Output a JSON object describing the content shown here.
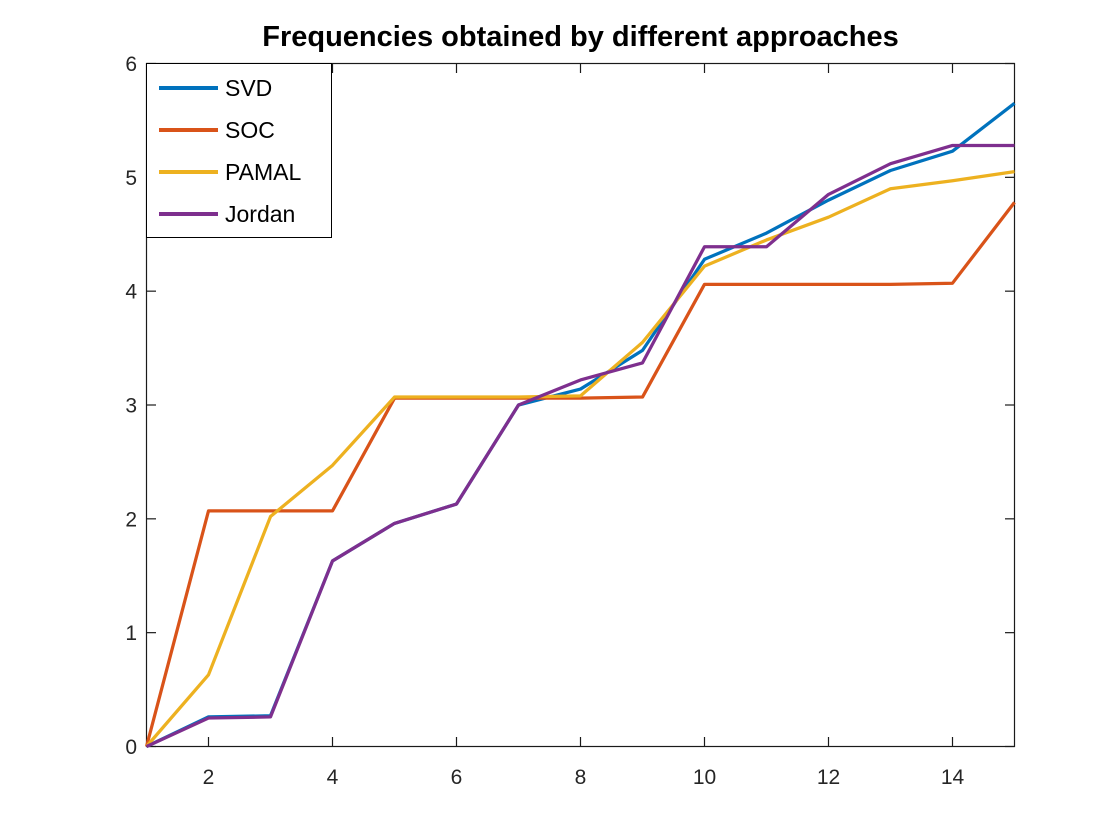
{
  "chart_data": {
    "type": "line",
    "title": "Frequencies obtained by different approaches",
    "xlabel": "",
    "ylabel": "",
    "xlim": [
      1,
      15
    ],
    "ylim": [
      0,
      6
    ],
    "xticks": [
      2,
      4,
      6,
      8,
      10,
      12,
      14
    ],
    "yticks": [
      0,
      1,
      2,
      3,
      4,
      5,
      6
    ],
    "grid": false,
    "legend_position": "top-left",
    "background_color": "#ffffff",
    "axis_color": "#1a1a1a",
    "tick_label_color": "#262626",
    "x": [
      1,
      2,
      3,
      4,
      5,
      6,
      7,
      8,
      9,
      10,
      11,
      12,
      13,
      14,
      15
    ],
    "series": [
      {
        "name": "SVD",
        "color": "#0072BD",
        "values": [
          0,
          0.26,
          0.27,
          1.63,
          1.96,
          2.13,
          3.0,
          3.14,
          3.48,
          4.28,
          4.51,
          4.8,
          5.06,
          5.23,
          5.65
        ]
      },
      {
        "name": "SOC",
        "color": "#D95319",
        "values": [
          0,
          2.07,
          2.07,
          2.07,
          3.06,
          3.06,
          3.06,
          3.06,
          3.07,
          4.06,
          4.06,
          4.06,
          4.06,
          4.07,
          4.78
        ]
      },
      {
        "name": "PAMAL",
        "color": "#EDB120",
        "values": [
          0,
          0.63,
          2.02,
          2.47,
          3.07,
          3.07,
          3.07,
          3.08,
          3.55,
          4.22,
          4.45,
          4.65,
          4.9,
          4.97,
          5.05
        ]
      },
      {
        "name": "Jordan",
        "color": "#7E2F8E",
        "values": [
          0,
          0.25,
          0.26,
          1.63,
          1.96,
          2.13,
          3.0,
          3.22,
          3.37,
          4.39,
          4.39,
          4.85,
          5.12,
          5.28,
          5.28
        ]
      }
    ]
  }
}
